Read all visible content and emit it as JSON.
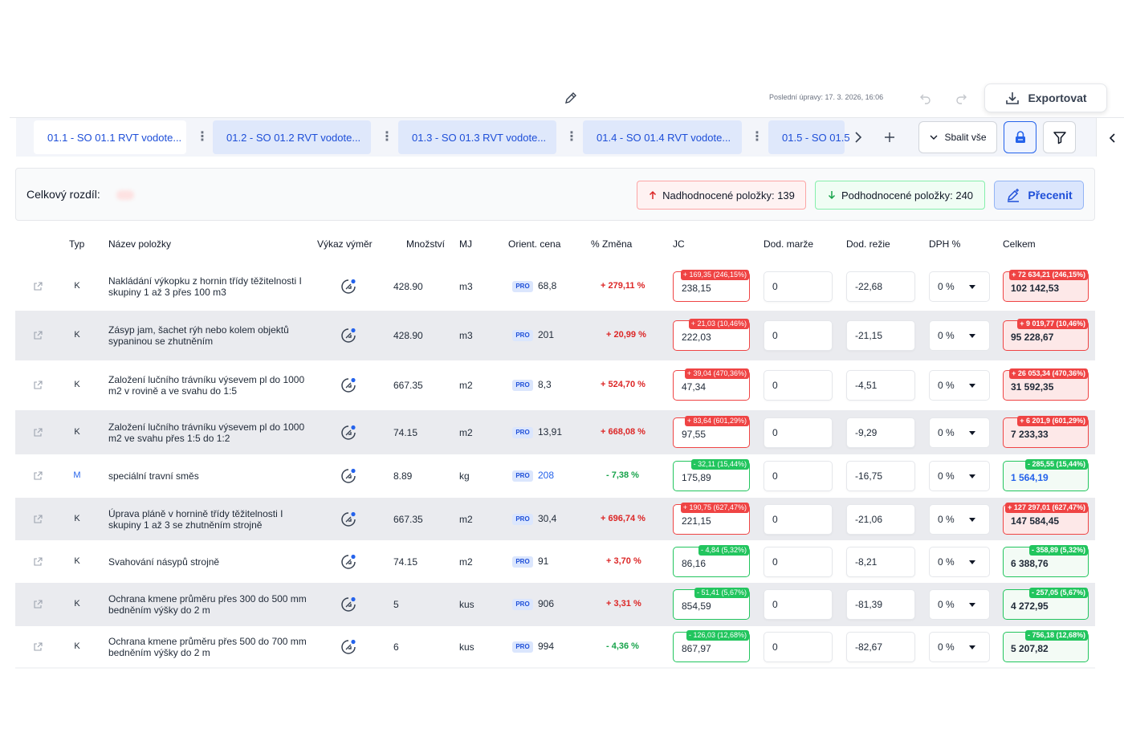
{
  "header": {
    "last_edit": "Poslední úpravy: 17. 3. 2026, 16:06",
    "export_label": "Exportovat"
  },
  "tabs": [
    {
      "label": "01.1 - SO 01.1 RVT vodote..."
    },
    {
      "label": "01.2 - SO 01.2 RVT vodote..."
    },
    {
      "label": "01.3 - SO 01.3 RVT vodote..."
    },
    {
      "label": "01.4 - SO 01.4 RVT vodote..."
    },
    {
      "label": "01.5 - SO 01.5"
    }
  ],
  "toolbar": {
    "collapse_label": "Sbalit vše"
  },
  "summary": {
    "total_diff_label": "Celkový rozdíl:",
    "overpriced_label": "Nadhodnocené položky: 139",
    "underpriced_label": "Podhodnocené položky: 240",
    "reprice_label": "Přecenit"
  },
  "columns": {
    "typ": "Typ",
    "nazev": "Název položky",
    "vykaz": "Výkaz výměr",
    "mnozstvi": "Množství",
    "mj": "MJ",
    "orient": "Orient. cena",
    "zmena": "% Změna",
    "jc": "JC",
    "marze": "Dod. marže",
    "rezie": "Dod. režie",
    "dph": "DPH %",
    "celkem": "Celkem"
  },
  "pro_label": "PRO",
  "rows": [
    {
      "typ": "K",
      "name": "Nakládání výkopku z hornin třídy těžitelnosti I skupiny 1 až 3 přes 100 m3",
      "qty": "428.90",
      "mj": "m3",
      "orient": "68,8",
      "change": "+ 279,11 %",
      "jc_tag": "+ 169,35 (246,15%)",
      "jc": "238,15",
      "marze": "0",
      "rezie": "-22,68",
      "dph": "0 %",
      "total_tag": "+ 72 634,21 (246,15%)",
      "total": "102 142,53"
    },
    {
      "typ": "K",
      "name": "Zásyp jam, šachet rýh nebo kolem objektů sypaninou se zhutněním",
      "qty": "428.90",
      "mj": "m3",
      "orient": "201",
      "change": "+ 20,99 %",
      "jc_tag": "+ 21,03 (10,46%)",
      "jc": "222,03",
      "marze": "0",
      "rezie": "-21,15",
      "dph": "0 %",
      "total_tag": "+ 9 019,77 (10,46%)",
      "total": "95 228,67"
    },
    {
      "typ": "K",
      "name": "Založení lučního trávníku výsevem pl do 1000 m2 v rovině a ve svahu do 1:5",
      "qty": "667.35",
      "mj": "m2",
      "orient": "8,3",
      "change": "+ 524,70 %",
      "jc_tag": "+ 39,04 (470,36%)",
      "jc": "47,34",
      "marze": "0",
      "rezie": "-4,51",
      "dph": "0 %",
      "total_tag": "+ 26 053,34 (470,36%)",
      "total": "31 592,35"
    },
    {
      "typ": "K",
      "name": "Založení lučního trávníku výsevem pl do 1000 m2 ve svahu přes 1:5 do 1:2",
      "qty": "74.15",
      "mj": "m2",
      "orient": "13,91",
      "change": "+ 668,08 %",
      "jc_tag": "+ 83,64 (601,29%)",
      "jc": "97,55",
      "marze": "0",
      "rezie": "-9,29",
      "dph": "0 %",
      "total_tag": "+ 6 201,9 (601,29%)",
      "total": "7 233,33"
    },
    {
      "typ": "M",
      "name": "speciální travní směs",
      "qty": "8.89",
      "mj": "kg",
      "orient": "208",
      "change": "- 7,38 %",
      "jc_tag": "- 32,11 (15,44%)",
      "jc": "175,89",
      "marze": "0",
      "rezie": "-16,75",
      "dph": "0 %",
      "total_tag": "- 285,55 (15,44%)",
      "total": "1 564,19"
    },
    {
      "typ": "K",
      "name": "Úprava pláně v hornině třídy těžitelnosti I skupiny 1 až 3 se zhutněním strojně",
      "qty": "667.35",
      "mj": "m2",
      "orient": "30,4",
      "change": "+ 696,74 %",
      "jc_tag": "+ 190,75 (627,47%)",
      "jc": "221,15",
      "marze": "0",
      "rezie": "-21,06",
      "dph": "0 %",
      "total_tag": "+ 127 297,01 (627,47%)",
      "total": "147 584,45"
    },
    {
      "typ": "K",
      "name": "Svahování násypů strojně",
      "qty": "74.15",
      "mj": "m2",
      "orient": "91",
      "change": "+ 3,70 %",
      "jc_tag": "- 4,84 (5,32%)",
      "jc": "86,16",
      "marze": "0",
      "rezie": "-8,21",
      "dph": "0 %",
      "total_tag": "- 358,89 (5,32%)",
      "total": "6 388,76"
    },
    {
      "typ": "K",
      "name": "Ochrana kmene průměru přes 300 do 500 mm bedněním výšky do 2 m",
      "qty": "5",
      "mj": "kus",
      "orient": "906",
      "change": "+ 3,31 %",
      "jc_tag": "- 51,41 (5,67%)",
      "jc": "854,59",
      "marze": "0",
      "rezie": "-81,39",
      "dph": "0 %",
      "total_tag": "- 257,05 (5,67%)",
      "total": "4 272,95"
    },
    {
      "typ": "K",
      "name": "Ochrana kmene průměru přes 500 do 700 mm bedněním výšky do 2 m",
      "qty": "6",
      "mj": "kus",
      "orient": "994",
      "change": "- 4,36 %",
      "jc_tag": "- 126,03 (12,68%)",
      "jc": "867,97",
      "marze": "0",
      "rezie": "-82,67",
      "dph": "0 %",
      "total_tag": "- 756,18 (12,68%)",
      "total": "5 207,82"
    }
  ],
  "row_status": [
    "red",
    "red",
    "red",
    "red",
    "green",
    "red",
    "green",
    "green",
    "green"
  ],
  "icons": {
    "edit": "pencil-icon",
    "undo": "undo-icon",
    "redo": "redo-icon",
    "export": "download-icon",
    "more": "kebab-icon",
    "next": "chevron-right-icon",
    "add": "plus-icon",
    "collapse": "chevron-down-icon",
    "lock": "lock-icon",
    "filter": "filter-icon",
    "sidebar": "chevron-left-icon",
    "arrow_up": "arrow-up-icon",
    "arrow_down": "arrow-down-icon",
    "reprice": "reprice-icon",
    "open": "external-link-icon",
    "measure": "measure-icon"
  },
  "colors": {
    "accent": "#2563eb",
    "over": "#ef4444",
    "under": "#22c55e",
    "row_alt": "#eaebef"
  }
}
